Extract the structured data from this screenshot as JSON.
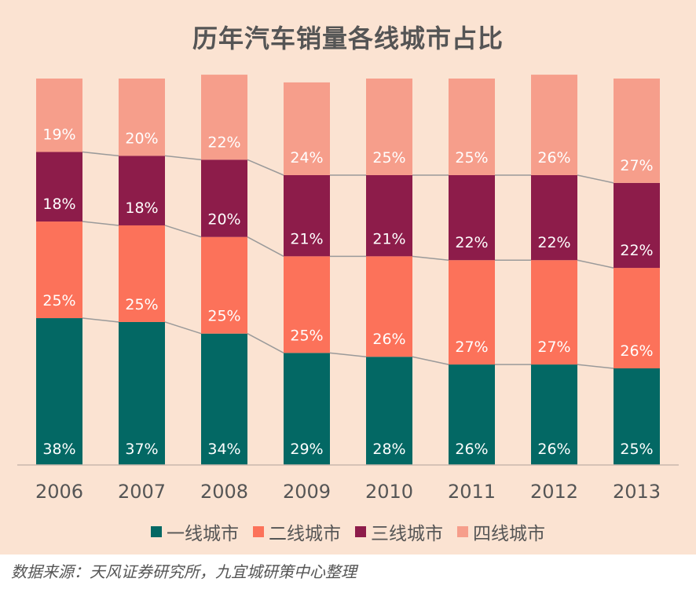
{
  "chart_data": {
    "type": "bar",
    "stacked": true,
    "percent": true,
    "title": "历年汽车销量各线城市占比",
    "categories": [
      "2006",
      "2007",
      "2008",
      "2009",
      "2010",
      "2011",
      "2012",
      "2013"
    ],
    "series": [
      {
        "name": "一线城市",
        "color": "#036864",
        "values": [
          38,
          37,
          34,
          29,
          28,
          26,
          26,
          25
        ],
        "labels": [
          "38%",
          "37%",
          "34%",
          "29%",
          "28%",
          "26%",
          "26%",
          "25%"
        ]
      },
      {
        "name": "二线城市",
        "color": "#fc725a",
        "values": [
          25,
          25,
          25,
          25,
          26,
          27,
          27,
          26
        ],
        "labels": [
          "25%",
          "25%",
          "25%",
          "25%",
          "26%",
          "27%",
          "27%",
          "26%"
        ]
      },
      {
        "name": "三线城市",
        "color": "#8d1c4a",
        "values": [
          18,
          18,
          20,
          21,
          21,
          22,
          22,
          22
        ],
        "labels": [
          "18%",
          "18%",
          "20%",
          "21%",
          "21%",
          "22%",
          "22%",
          "22%"
        ]
      },
      {
        "name": "四线城市",
        "color": "#f69e8b",
        "values": [
          19,
          20,
          22,
          24,
          25,
          25,
          26,
          27
        ],
        "labels": [
          "19%",
          "20%",
          "22%",
          "24%",
          "25%",
          "25%",
          "26%",
          "27%"
        ]
      }
    ],
    "ylim": [
      0,
      100
    ],
    "xlabel": "",
    "ylabel": "",
    "legend": "bottom",
    "grid": false,
    "series_lines": true
  },
  "source": "数据来源：天风证券研究所，九宜城研策中心整理",
  "colors": {
    "background": "#fbe3d2",
    "text": "#555555",
    "connector": "#9a9a9a"
  }
}
